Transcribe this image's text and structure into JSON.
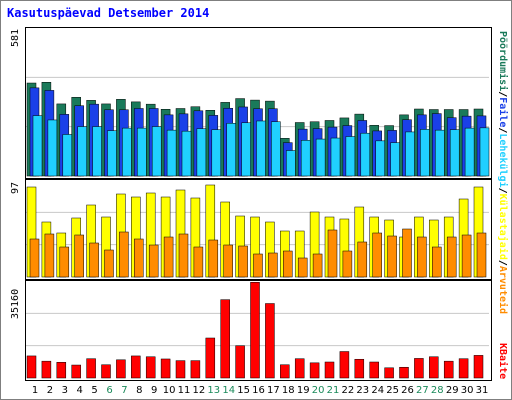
{
  "chart_data": [
    {
      "type": "bar",
      "title": "Kasutuspäevad Detsember 2014",
      "xlabel": "",
      "ylabel": "",
      "ymax_label": "581",
      "ylim": [
        0,
        581
      ],
      "categories": [
        "1",
        "2",
        "3",
        "4",
        "5",
        "6",
        "7",
        "8",
        "9",
        "10",
        "11",
        "12",
        "13",
        "14",
        "15",
        "16",
        "17",
        "18",
        "19",
        "20",
        "21",
        "22",
        "23",
        "24",
        "25",
        "26",
        "27",
        "28",
        "29",
        "30",
        "31"
      ],
      "weekend_days": [
        "6",
        "7",
        "13",
        "14",
        "20",
        "21",
        "27",
        "28"
      ],
      "series": [
        {
          "name": "Pöördumisi",
          "color": "#1a7a5a",
          "values": [
            365,
            368,
            283,
            309,
            297,
            283,
            301,
            291,
            282,
            262,
            265,
            272,
            258,
            289,
            304,
            298,
            294,
            148,
            210,
            213,
            218,
            228,
            243,
            199,
            198,
            240,
            263,
            261,
            261,
            261,
            263
          ]
        },
        {
          "name": "Faile",
          "color": "#1a40e8",
          "values": [
            346,
            336,
            242,
            276,
            282,
            260,
            260,
            265,
            265,
            240,
            244,
            256,
            238,
            266,
            271,
            264,
            264,
            131,
            184,
            186,
            192,
            198,
            218,
            177,
            179,
            221,
            240,
            245,
            229,
            235,
            236
          ]
        },
        {
          "name": "Lehekülgi",
          "color": "#20d0ff",
          "values": [
            237,
            220,
            163,
            194,
            194,
            178,
            188,
            188,
            194,
            180,
            176,
            186,
            182,
            207,
            209,
            216,
            213,
            100,
            140,
            145,
            149,
            155,
            168,
            138,
            131,
            173,
            183,
            180,
            182,
            188,
            189
          ]
        }
      ]
    },
    {
      "type": "bar",
      "ymax_label": "97",
      "ylim": [
        0,
        97
      ],
      "categories": [
        "1",
        "2",
        "3",
        "4",
        "5",
        "6",
        "7",
        "8",
        "9",
        "10",
        "11",
        "12",
        "13",
        "14",
        "15",
        "16",
        "17",
        "18",
        "19",
        "20",
        "21",
        "22",
        "23",
        "24",
        "25",
        "26",
        "27",
        "28",
        "29",
        "30",
        "31"
      ],
      "series": [
        {
          "name": "Külastajaid",
          "color": "#ffff00",
          "values": [
            90,
            55,
            44,
            59,
            72,
            60,
            83,
            80,
            84,
            80,
            87,
            79,
            92,
            75,
            61,
            60,
            55,
            46,
            46,
            65,
            60,
            58,
            70,
            60,
            57,
            40,
            60,
            57,
            60,
            78,
            90
          ]
        },
        {
          "name": "Arvuteid",
          "color": "#ff8c00",
          "values": [
            38,
            43,
            30,
            42,
            34,
            27,
            45,
            38,
            32,
            40,
            43,
            30,
            37,
            32,
            31,
            23,
            24,
            26,
            19,
            23,
            47,
            26,
            35,
            44,
            41,
            48,
            40,
            30,
            40,
            42,
            44
          ]
        }
      ]
    },
    {
      "type": "bar",
      "ymax_label": "35160",
      "ylim": [
        0,
        35160
      ],
      "categories": [
        "1",
        "2",
        "3",
        "4",
        "5",
        "6",
        "7",
        "8",
        "9",
        "10",
        "11",
        "12",
        "13",
        "14",
        "15",
        "16",
        "17",
        "18",
        "19",
        "20",
        "21",
        "22",
        "23",
        "24",
        "25",
        "26",
        "27",
        "28",
        "29",
        "30",
        "31"
      ],
      "series": [
        {
          "name": "KBaite",
          "color": "#ff0000",
          "values": [
            8000,
            6100,
            5700,
            4700,
            7000,
            4800,
            6600,
            8000,
            7700,
            6900,
            6300,
            6300,
            14500,
            28400,
            11700,
            34700,
            27000,
            4800,
            7000,
            5500,
            5800,
            9600,
            6800,
            5800,
            3700,
            3900,
            7100,
            7700,
            6100,
            7000,
            8200
          ]
        }
      ]
    }
  ],
  "legend": {
    "top_parts": [
      "Pöördumisi",
      "Faile",
      "Lehekülgi",
      "Külastajaid",
      "Arvuteid"
    ],
    "separator": "/",
    "bottom_label": "KBaite",
    "separator_color": "#000000"
  }
}
